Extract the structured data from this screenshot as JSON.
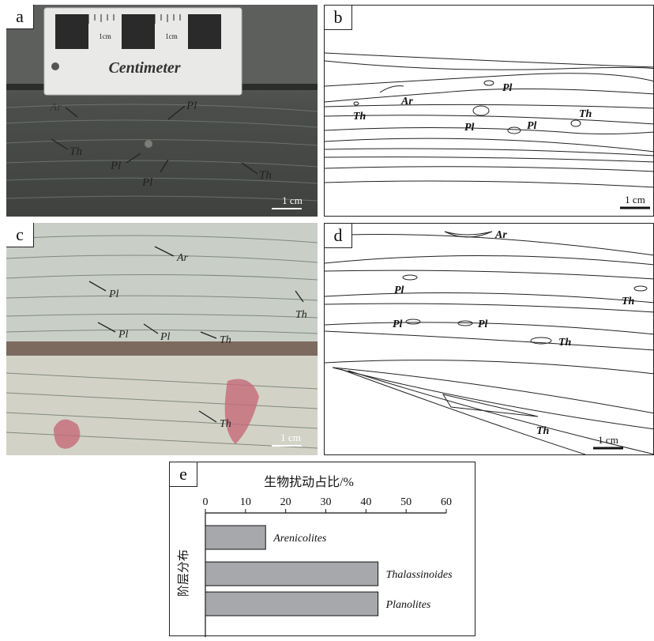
{
  "panels": {
    "a": {
      "label": "a",
      "ruler_text": "Centimeter",
      "ruler_cm_1": "1cm",
      "ruler_cm_2": "1cm",
      "annotations": [
        "Ar",
        "Pl",
        "Th",
        "Pl",
        "Pl",
        "Th"
      ],
      "scale": "1 cm"
    },
    "b": {
      "label": "b",
      "annotations": [
        "Ar",
        "Pl",
        "Th",
        "Pl",
        "Pl",
        "Th"
      ],
      "scale": "1 cm"
    },
    "c": {
      "label": "c",
      "annotations": [
        "Ar",
        "Pl",
        "Th",
        "Pl",
        "Pl",
        "Th",
        "Th"
      ],
      "scale": "1 cm"
    },
    "d": {
      "label": "d",
      "annotations": [
        "Ar",
        "Pl",
        "Th",
        "Pl",
        "Pl",
        "Th",
        "Th"
      ],
      "scale": "1 cm"
    },
    "e": {
      "label": "e"
    }
  },
  "chart_data": {
    "type": "bar",
    "orientation": "horizontal",
    "title": "生物扰动占比/%",
    "ylabel": "阶层分布",
    "categories": [
      "Arenicolites",
      "Thalassinoides",
      "Planolites"
    ],
    "values": [
      15,
      43,
      43
    ],
    "xlim": [
      0,
      60
    ],
    "xticks": [
      0,
      10,
      20,
      30,
      40,
      50,
      60
    ],
    "bar_color": "#a6a8ab"
  }
}
